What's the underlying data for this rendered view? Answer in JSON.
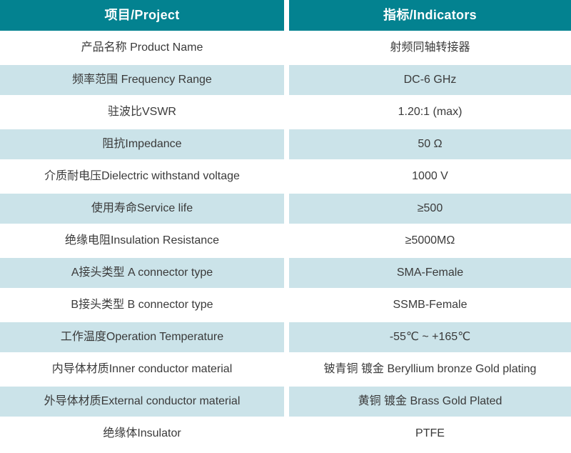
{
  "table": {
    "header": {
      "project": "项目/Project",
      "indicators": "指标/Indicators"
    },
    "rows": [
      {
        "project": "产品名称 Product Name",
        "indicator": "射频同轴转接器"
      },
      {
        "project": "频率范围 Frequency Range",
        "indicator": "DC-6 GHz"
      },
      {
        "project": "驻波比VSWR",
        "indicator": "1.20:1 (max)"
      },
      {
        "project": "阻抗Impedance",
        "indicator": "50 Ω"
      },
      {
        "project": "介质耐电压Dielectric withstand voltage",
        "indicator": "1000 V"
      },
      {
        "project": "使用寿命Service life",
        "indicator": "≥500"
      },
      {
        "project": "绝缘电阻Insulation Resistance",
        "indicator": "≥5000MΩ"
      },
      {
        "project": "A接头类型 A connector type",
        "indicator": "SMA-Female"
      },
      {
        "project": "B接头类型 B connector type",
        "indicator": "SSMB-Female"
      },
      {
        "project": "工作温度Operation Temperature",
        "indicator": "-55℃ ~ +165℃"
      },
      {
        "project": "内导体材质Inner conductor material",
        "indicator": "铍青铜 镀金 Beryllium bronze Gold plating"
      },
      {
        "project": "外导体材质External conductor material",
        "indicator": "黄铜 镀金 Brass Gold Plated"
      },
      {
        "project": "绝缘体Insulator",
        "indicator": "PTFE"
      }
    ]
  },
  "colors": {
    "header_bg": "#038290",
    "alt_row_bg": "#cbe3e9",
    "row_bg": "#ffffff",
    "header_text": "#ffffff",
    "body_text": "#3a3a3a"
  }
}
